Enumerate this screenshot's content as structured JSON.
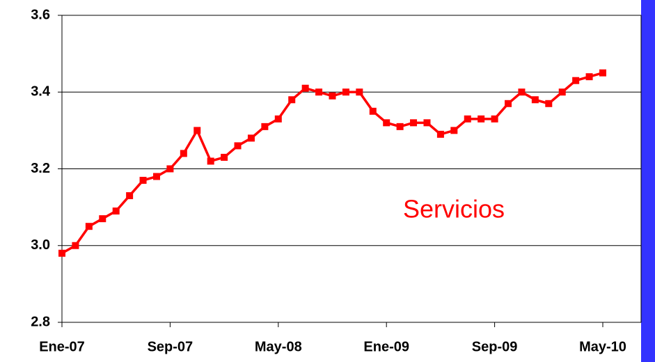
{
  "chart_data": {
    "type": "line",
    "categories": [
      "Ene-07",
      null,
      null,
      null,
      null,
      null,
      null,
      null,
      "Sep-07",
      null,
      null,
      null,
      null,
      null,
      null,
      null,
      "May-08",
      null,
      null,
      null,
      null,
      null,
      null,
      null,
      "Ene-09",
      null,
      null,
      null,
      null,
      null,
      null,
      null,
      "Sep-09",
      null,
      null,
      null,
      null,
      null,
      null,
      null,
      "May-10"
    ],
    "series": [
      {
        "name": "Servicios",
        "color": "#ff0000",
        "values": [
          2.98,
          3.0,
          3.05,
          3.07,
          3.09,
          3.13,
          3.17,
          3.18,
          3.2,
          3.24,
          3.3,
          3.22,
          3.23,
          3.26,
          3.28,
          3.31,
          3.33,
          3.38,
          3.41,
          3.4,
          3.39,
          3.4,
          3.4,
          3.35,
          3.32,
          3.31,
          3.32,
          3.32,
          3.29,
          3.3,
          3.33,
          3.33,
          3.33,
          3.37,
          3.4,
          3.38,
          3.37,
          3.4,
          3.43,
          3.44,
          3.45
        ]
      }
    ],
    "annotation": "Servicios",
    "ylim": [
      2.8,
      3.6
    ],
    "yticks": [
      {
        "value": 2.8,
        "label": "2.8"
      },
      {
        "value": 3,
        "label": "3.0"
      },
      3.2,
      3.4,
      3.6
    ],
    "grid": true
  }
}
